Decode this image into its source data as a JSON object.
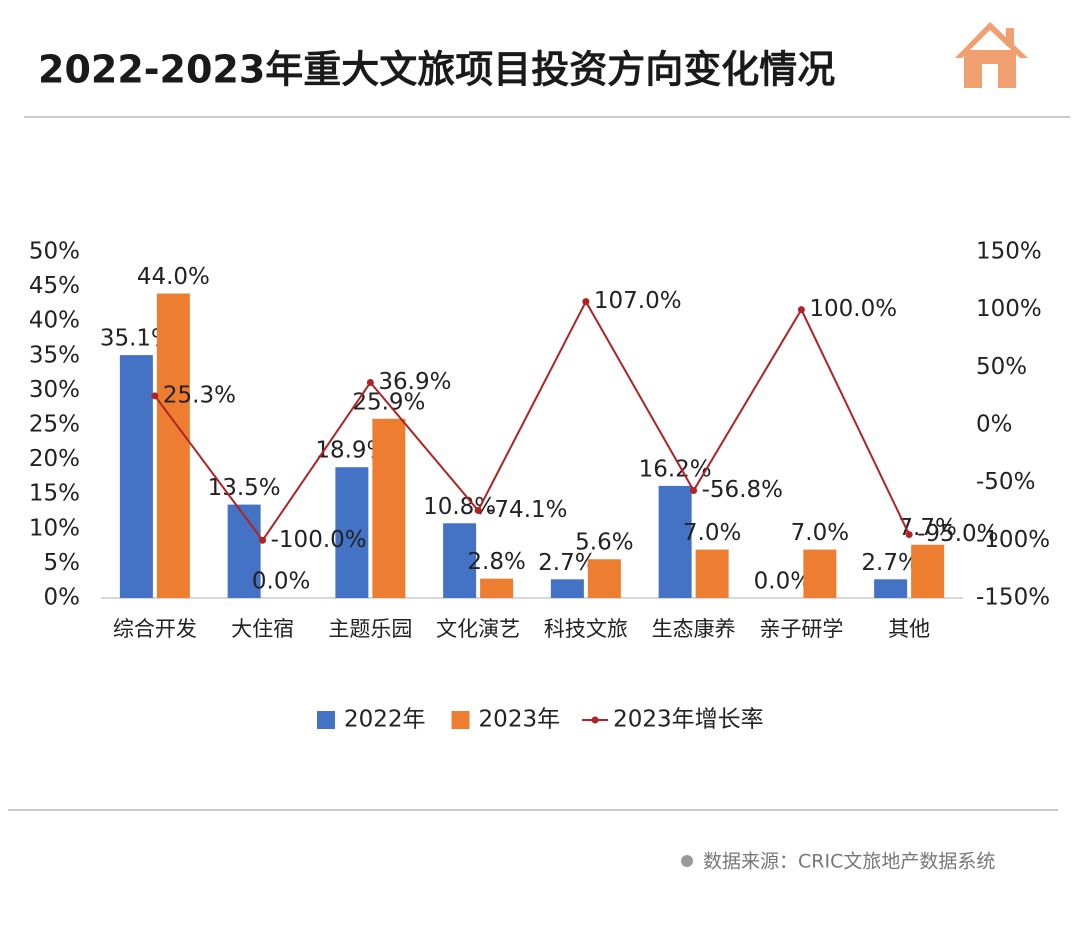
{
  "chart_data": {
    "type": "bar",
    "title": "2022-2023年重大文旅项目投资方向变化情况",
    "source": "数据来源：CRIC文旅地产数据系统",
    "categories": [
      "综合开发",
      "大住宿",
      "主题乐园",
      "文化演艺",
      "科技文旅",
      "生态康养",
      "亲子研学",
      "其他"
    ],
    "series": [
      {
        "name": "2022年",
        "color": "#4472c4",
        "values": [
          35.1,
          13.5,
          18.9,
          10.8,
          2.7,
          16.2,
          0.0,
          2.7
        ],
        "value_labels": [
          "35.1%",
          "13.5%",
          "18.9%",
          "10.8%",
          "2.7%",
          "16.2%",
          "0.0%",
          "2.7%"
        ]
      },
      {
        "name": "2023年",
        "color": "#ed7d31",
        "values": [
          44.0,
          0.0,
          25.9,
          2.8,
          5.6,
          7.0,
          7.0,
          7.7
        ],
        "value_labels": [
          "44.0%",
          "0.0%",
          "25.9%",
          "2.8%",
          "5.6%",
          "7.0%",
          "7.0%",
          "7.7%"
        ]
      },
      {
        "name": "2023年增长率",
        "type": "line",
        "axis": "y2",
        "color": "#b22222",
        "values": [
          25.3,
          -100.0,
          36.9,
          -74.1,
          107.0,
          -56.8,
          100.0,
          -95.0
        ],
        "value_labels": [
          "25.3%",
          "-100.0%",
          "36.9%",
          "-74.1%",
          "107.0%",
          "-56.8%",
          "100.0%",
          "-95.0%"
        ]
      }
    ],
    "ylim": [
      0,
      50
    ],
    "yticks": [
      {
        "value": 0,
        "label": "0%"
      },
      {
        "value": 5,
        "label": "5%"
      },
      {
        "value": 10,
        "label": "10%"
      },
      {
        "value": 15,
        "label": "15%"
      },
      {
        "value": 20,
        "label": "20%"
      },
      {
        "value": 25,
        "label": "25%"
      },
      {
        "value": 30,
        "label": "30%"
      },
      {
        "value": 35,
        "label": "35%"
      },
      {
        "value": 40,
        "label": "40%"
      },
      {
        "value": 45,
        "label": "45%"
      },
      {
        "value": 50,
        "label": "50%"
      }
    ],
    "y2lim": [
      -150,
      150
    ],
    "y2ticks": [
      {
        "value": -150,
        "label": "-150%"
      },
      {
        "value": -100,
        "label": "-100%"
      },
      {
        "value": -50,
        "label": "-50%"
      },
      {
        "value": 0,
        "label": "0%"
      },
      {
        "value": 50,
        "label": "50%"
      },
      {
        "value": 100,
        "label": "100%"
      },
      {
        "value": 150,
        "label": "150%"
      }
    ],
    "grid": false
  }
}
